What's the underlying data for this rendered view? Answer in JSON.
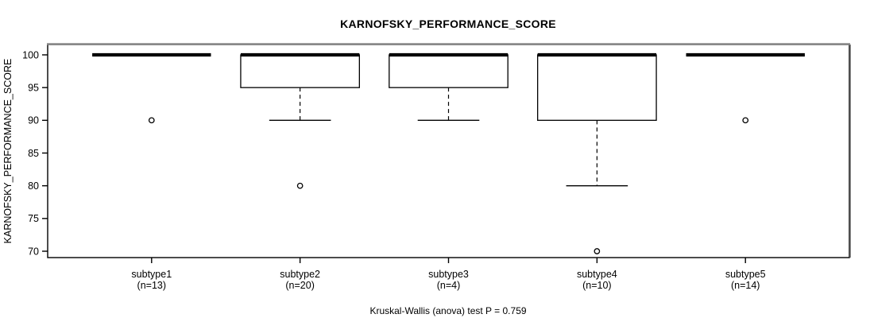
{
  "chart_data": {
    "type": "boxplot",
    "title": "KARNOFSKY_PERFORMANCE_SCORE",
    "ylabel": "KARNOFSKY_PERFORMANCE_SCORE",
    "caption": "Kruskal-Wallis (anova) test P = 0.759",
    "ylim": [
      70,
      100
    ],
    "yticks": [
      70,
      75,
      80,
      85,
      90,
      95,
      100
    ],
    "grid": false,
    "legend": "none",
    "categories": [
      "subtype1",
      "subtype2",
      "subtype3",
      "subtype4",
      "subtype5"
    ],
    "series": [
      {
        "name": "subtype1",
        "label": "subtype1",
        "label2": "(n=13)",
        "n": 13,
        "q1": 100,
        "median": 100,
        "q3": 100,
        "whisker_low": 100,
        "whisker_high": 100,
        "outliers": [
          90
        ]
      },
      {
        "name": "subtype2",
        "label": "subtype2",
        "label2": "(n=20)",
        "n": 20,
        "q1": 95,
        "median": 100,
        "q3": 100,
        "whisker_low": 90,
        "whisker_high": 100,
        "outliers": [
          80
        ]
      },
      {
        "name": "subtype3",
        "label": "subtype3",
        "label2": "(n=4)",
        "n": 4,
        "q1": 95,
        "median": 100,
        "q3": 100,
        "whisker_low": 90,
        "whisker_high": 100,
        "outliers": []
      },
      {
        "name": "subtype4",
        "label": "subtype4",
        "label2": "(n=10)",
        "n": 10,
        "q1": 90,
        "median": 100,
        "q3": 100,
        "whisker_low": 80,
        "whisker_high": 100,
        "outliers": [
          70
        ]
      },
      {
        "name": "subtype5",
        "label": "subtype5",
        "label2": "(n=14)",
        "n": 14,
        "q1": 100,
        "median": 100,
        "q3": 100,
        "whisker_low": 100,
        "whisker_high": 100,
        "outliers": [
          90
        ]
      }
    ],
    "colors": {
      "box_stroke": "#000000",
      "box_fill": "#ffffff",
      "median": "#000000",
      "frame": "#000000",
      "frame_shadow": "#878787",
      "text": "#000000"
    }
  }
}
